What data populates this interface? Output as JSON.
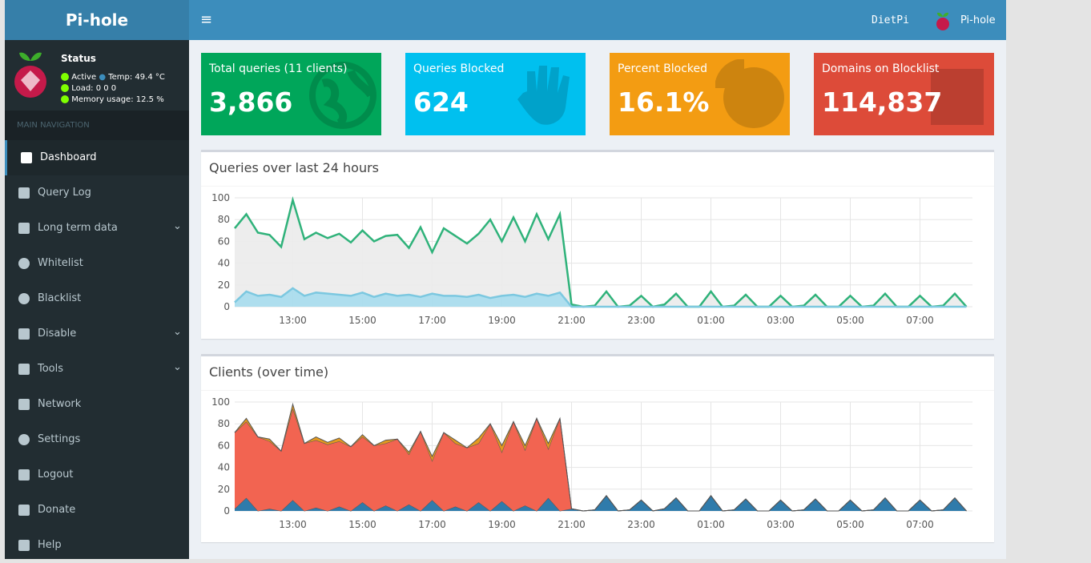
{
  "header": {
    "logo": "Pi-hole",
    "host": "DietPi",
    "brand": "Pi-hole"
  },
  "status": {
    "title": "Status",
    "active": "Active",
    "temp": "Temp: 49.4 °C",
    "load": "Load:  0  0  0",
    "memory": "Memory usage:  12.5 %"
  },
  "nav": {
    "heading": "MAIN NAVIGATION",
    "items": [
      "Dashboard",
      "Query Log",
      "Long term data",
      "Whitelist",
      "Blacklist",
      "Disable",
      "Tools",
      "Network",
      "Settings",
      "Logout",
      "Donate",
      "Help"
    ]
  },
  "boxes": [
    {
      "label": "Total queries (11 clients)",
      "value": "3,866"
    },
    {
      "label": "Queries Blocked",
      "value": "624"
    },
    {
      "label": "Percent Blocked",
      "value": "16.1%"
    },
    {
      "label": "Domains on Blocklist",
      "value": "114,837"
    }
  ],
  "chart_data": [
    {
      "type": "line",
      "title": "Queries over last 24 hours",
      "x": [
        "11:20",
        "11:40",
        "12:00",
        "12:20",
        "12:40",
        "13:00",
        "13:20",
        "13:40",
        "14:00",
        "14:20",
        "14:40",
        "15:00",
        "15:20",
        "15:40",
        "16:00",
        "16:20",
        "16:40",
        "17:00",
        "17:20",
        "17:40",
        "18:00",
        "18:20",
        "18:40",
        "19:00",
        "19:20",
        "19:40",
        "20:00",
        "20:20",
        "20:40",
        "21:00",
        "21:20",
        "21:40",
        "22:00",
        "22:20",
        "22:40",
        "23:00",
        "23:20",
        "23:40",
        "00:00",
        "00:20",
        "00:40",
        "01:00",
        "01:20",
        "01:40",
        "02:00",
        "02:20",
        "02:40",
        "03:00",
        "03:20",
        "03:40",
        "04:00",
        "04:20",
        "04:40",
        "05:00",
        "05:20",
        "05:40",
        "06:00",
        "06:20",
        "06:40",
        "07:00",
        "07:20",
        "07:40",
        "08:00",
        "08:20"
      ],
      "xticks": [
        "13:00",
        "15:00",
        "17:00",
        "19:00",
        "21:00",
        "23:00",
        "01:00",
        "03:00",
        "05:00",
        "07:00"
      ],
      "ylim": [
        0,
        100
      ],
      "yticks": [
        0,
        20,
        40,
        60,
        80,
        100
      ],
      "grid": true,
      "series": [
        {
          "color": "#2fb27a",
          "fill": "#ebebeb",
          "values": [
            72,
            85,
            68,
            66,
            55,
            98,
            62,
            68,
            63,
            67,
            59,
            70,
            60,
            65,
            66,
            54,
            73,
            50,
            72,
            65,
            58,
            67,
            80,
            60,
            82,
            60,
            85,
            62,
            85,
            2,
            0,
            1,
            14,
            0,
            1,
            10,
            0,
            2,
            12,
            0,
            0,
            14,
            0,
            1,
            11,
            0,
            0,
            10,
            0,
            1,
            11,
            0,
            0,
            10,
            0,
            1,
            12,
            0,
            0,
            10,
            0,
            1,
            12,
            0
          ]
        },
        {
          "color": "#7cc8e0",
          "fill": "#a6dbed",
          "values": [
            4,
            14,
            10,
            11,
            9,
            17,
            10,
            13,
            12,
            11,
            10,
            13,
            9,
            12,
            10,
            11,
            9,
            12,
            10,
            10,
            9,
            11,
            8,
            10,
            11,
            9,
            12,
            10,
            13,
            0,
            0,
            0,
            0,
            0,
            0,
            0,
            0,
            0,
            0,
            0,
            0,
            0,
            0,
            0,
            0,
            0,
            0,
            0,
            0,
            0,
            0,
            0,
            0,
            0,
            0,
            0,
            0,
            0,
            0,
            0,
            0,
            0,
            0,
            0
          ]
        }
      ]
    },
    {
      "type": "area",
      "title": "Clients (over time)",
      "stacked": true,
      "x": [
        "11:20",
        "11:40",
        "12:00",
        "12:20",
        "12:40",
        "13:00",
        "13:20",
        "13:40",
        "14:00",
        "14:20",
        "14:40",
        "15:00",
        "15:20",
        "15:40",
        "16:00",
        "16:20",
        "16:40",
        "17:00",
        "17:20",
        "17:40",
        "18:00",
        "18:20",
        "18:40",
        "19:00",
        "19:20",
        "19:40",
        "20:00",
        "20:20",
        "20:40",
        "21:00",
        "21:20",
        "21:40",
        "22:00",
        "22:20",
        "22:40",
        "23:00",
        "23:20",
        "23:40",
        "00:00",
        "00:20",
        "00:40",
        "01:00",
        "01:20",
        "01:40",
        "02:00",
        "02:20",
        "02:40",
        "03:00",
        "03:20",
        "03:40",
        "04:00",
        "04:20",
        "04:40",
        "05:00",
        "05:20",
        "05:40",
        "06:00",
        "06:20",
        "06:40",
        "07:00",
        "07:20",
        "07:40",
        "08:00",
        "08:20"
      ],
      "xticks": [
        "13:00",
        "15:00",
        "17:00",
        "19:00",
        "21:00",
        "23:00",
        "01:00",
        "03:00",
        "05:00",
        "07:00"
      ],
      "ylim": [
        0,
        100
      ],
      "yticks": [
        0,
        20,
        40,
        60,
        80,
        100
      ],
      "grid": true,
      "series": [
        {
          "color": "#2f7bab",
          "values": [
            2,
            12,
            0,
            2,
            0,
            10,
            0,
            3,
            0,
            4,
            0,
            8,
            0,
            5,
            0,
            6,
            0,
            10,
            0,
            4,
            0,
            8,
            0,
            9,
            0,
            5,
            0,
            12,
            0,
            2,
            0,
            1,
            14,
            0,
            1,
            10,
            0,
            2,
            12,
            0,
            0,
            14,
            0,
            1,
            11,
            0,
            0,
            10,
            0,
            1,
            11,
            0,
            0,
            10,
            0,
            1,
            12,
            0,
            0,
            10,
            0,
            1,
            12,
            0
          ]
        },
        {
          "color": "#f26451",
          "values": [
            70,
            70,
            68,
            62,
            55,
            84,
            62,
            62,
            61,
            60,
            59,
            60,
            60,
            57,
            66,
            46,
            73,
            36,
            72,
            58,
            58,
            54,
            80,
            45,
            82,
            51,
            85,
            45,
            85,
            0,
            0,
            0,
            0,
            0,
            0,
            0,
            0,
            0,
            0,
            0,
            0,
            0,
            0,
            0,
            0,
            0,
            0,
            0,
            0,
            0,
            0,
            0,
            0,
            0,
            0,
            0,
            0,
            0,
            0,
            0,
            0,
            0,
            0,
            0
          ]
        },
        {
          "color": "#e39a1f",
          "values": [
            0,
            3,
            0,
            2,
            0,
            4,
            0,
            3,
            2,
            3,
            0,
            2,
            0,
            3,
            0,
            2,
            0,
            4,
            0,
            3,
            0,
            5,
            0,
            6,
            0,
            4,
            0,
            5,
            0,
            0,
            0,
            0,
            0,
            0,
            0,
            0,
            0,
            0,
            0,
            0,
            0,
            0,
            0,
            0,
            0,
            0,
            0,
            0,
            0,
            0,
            0,
            0,
            0,
            0,
            0,
            0,
            0,
            0,
            0,
            0,
            0,
            0,
            0,
            0
          ]
        }
      ]
    }
  ]
}
